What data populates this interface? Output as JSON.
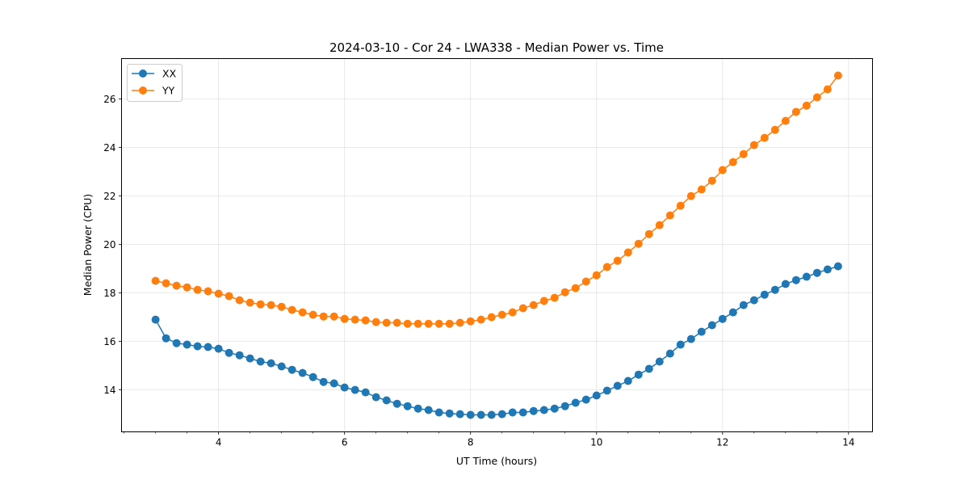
{
  "chart_data": {
    "type": "line",
    "title": "2024-03-10 - Cor 24 - LWA338 - Median Power vs. Time",
    "xlabel": "UT Time (hours)",
    "ylabel": "Median Power (CPU)",
    "xlim": [
      2.46,
      14.38
    ],
    "ylim": [
      12.27,
      27.67
    ],
    "xticks": [
      4,
      6,
      8,
      10,
      12,
      14
    ],
    "yticks": [
      14,
      16,
      18,
      20,
      22,
      24,
      26
    ],
    "grid": true,
    "legend_placement": "top-left",
    "x_start": 3.0,
    "x_step_hours": 0.16667,
    "series": [
      {
        "name": "XX",
        "color": "#1f77b4",
        "values": [
          16.9,
          16.13,
          15.93,
          15.87,
          15.8,
          15.77,
          15.7,
          15.53,
          15.43,
          15.3,
          15.17,
          15.1,
          14.97,
          14.83,
          14.7,
          14.53,
          14.33,
          14.27,
          14.1,
          14.0,
          13.9,
          13.7,
          13.57,
          13.43,
          13.33,
          13.23,
          13.17,
          13.07,
          13.03,
          13.0,
          12.97,
          12.97,
          12.97,
          13.0,
          13.07,
          13.07,
          13.13,
          13.17,
          13.23,
          13.33,
          13.47,
          13.6,
          13.77,
          13.97,
          14.17,
          14.37,
          14.63,
          14.87,
          15.17,
          15.5,
          15.87,
          16.1,
          16.4,
          16.67,
          16.93,
          17.2,
          17.5,
          17.7,
          17.93,
          18.13,
          18.37,
          18.53,
          18.67,
          18.83,
          18.97,
          19.1
        ]
      },
      {
        "name": "YY",
        "color": "#ff7f0e",
        "values": [
          18.5,
          18.4,
          18.3,
          18.23,
          18.13,
          18.07,
          17.97,
          17.87,
          17.7,
          17.6,
          17.53,
          17.5,
          17.43,
          17.3,
          17.2,
          17.1,
          17.03,
          17.03,
          16.93,
          16.9,
          16.87,
          16.8,
          16.77,
          16.77,
          16.73,
          16.73,
          16.73,
          16.73,
          16.73,
          16.77,
          16.83,
          16.9,
          17.0,
          17.1,
          17.2,
          17.37,
          17.5,
          17.67,
          17.8,
          18.03,
          18.2,
          18.47,
          18.73,
          19.07,
          19.33,
          19.67,
          20.03,
          20.43,
          20.8,
          21.2,
          21.6,
          22.0,
          22.27,
          22.63,
          23.07,
          23.4,
          23.73,
          24.1,
          24.4,
          24.73,
          25.1,
          25.47,
          25.73,
          26.07,
          26.4,
          26.97
        ]
      }
    ]
  }
}
